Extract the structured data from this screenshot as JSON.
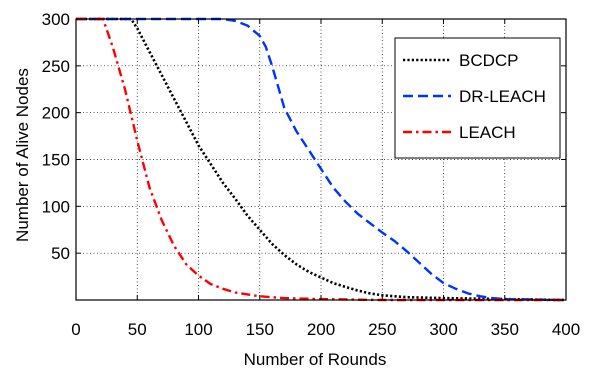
{
  "chart_data": {
    "type": "line",
    "title": "",
    "xlabel": "Number of Rounds",
    "ylabel": "Number of Alive Nodes",
    "xlim": [
      0,
      400
    ],
    "ylim": [
      0,
      300
    ],
    "x_ticks": [
      0,
      50,
      100,
      150,
      200,
      250,
      300,
      350,
      400
    ],
    "y_ticks": [
      50,
      100,
      150,
      200,
      250,
      300
    ],
    "grid": true,
    "legend_position": "top-right",
    "series": [
      {
        "name": "BCDCP",
        "color": "#000000",
        "style": "dotted",
        "points": [
          [
            0,
            300
          ],
          [
            45,
            300
          ],
          [
            50,
            290
          ],
          [
            60,
            265
          ],
          [
            70,
            240
          ],
          [
            80,
            215
          ],
          [
            90,
            190
          ],
          [
            100,
            165
          ],
          [
            110,
            145
          ],
          [
            120,
            125
          ],
          [
            130,
            108
          ],
          [
            140,
            90
          ],
          [
            150,
            75
          ],
          [
            160,
            60
          ],
          [
            170,
            48
          ],
          [
            180,
            38
          ],
          [
            190,
            30
          ],
          [
            200,
            24
          ],
          [
            210,
            18
          ],
          [
            220,
            14
          ],
          [
            230,
            10
          ],
          [
            240,
            7
          ],
          [
            250,
            5
          ],
          [
            270,
            3
          ],
          [
            300,
            2
          ],
          [
            350,
            1
          ],
          [
            400,
            0
          ]
        ]
      },
      {
        "name": "DR-LEACH",
        "color": "#0033ff",
        "style": "dashed",
        "points": [
          [
            0,
            300
          ],
          [
            120,
            300
          ],
          [
            130,
            298
          ],
          [
            140,
            293
          ],
          [
            150,
            282
          ],
          [
            155,
            270
          ],
          [
            160,
            250
          ],
          [
            165,
            228
          ],
          [
            170,
            205
          ],
          [
            180,
            180
          ],
          [
            190,
            160
          ],
          [
            200,
            140
          ],
          [
            210,
            120
          ],
          [
            220,
            105
          ],
          [
            230,
            92
          ],
          [
            240,
            82
          ],
          [
            250,
            72
          ],
          [
            260,
            63
          ],
          [
            270,
            52
          ],
          [
            280,
            40
          ],
          [
            290,
            28
          ],
          [
            300,
            18
          ],
          [
            310,
            12
          ],
          [
            320,
            7
          ],
          [
            330,
            4
          ],
          [
            340,
            2
          ],
          [
            350,
            1
          ],
          [
            400,
            0
          ]
        ]
      },
      {
        "name": "LEACH",
        "color": "#ff0000",
        "style": "dashdot",
        "points": [
          [
            0,
            300
          ],
          [
            22,
            300
          ],
          [
            30,
            270
          ],
          [
            40,
            225
          ],
          [
            50,
            170
          ],
          [
            60,
            120
          ],
          [
            70,
            85
          ],
          [
            80,
            58
          ],
          [
            90,
            38
          ],
          [
            100,
            26
          ],
          [
            110,
            17
          ],
          [
            120,
            12
          ],
          [
            130,
            8
          ],
          [
            140,
            6
          ],
          [
            150,
            4
          ],
          [
            170,
            2
          ],
          [
            200,
            1
          ],
          [
            250,
            0
          ],
          [
            400,
            0
          ]
        ]
      }
    ]
  }
}
